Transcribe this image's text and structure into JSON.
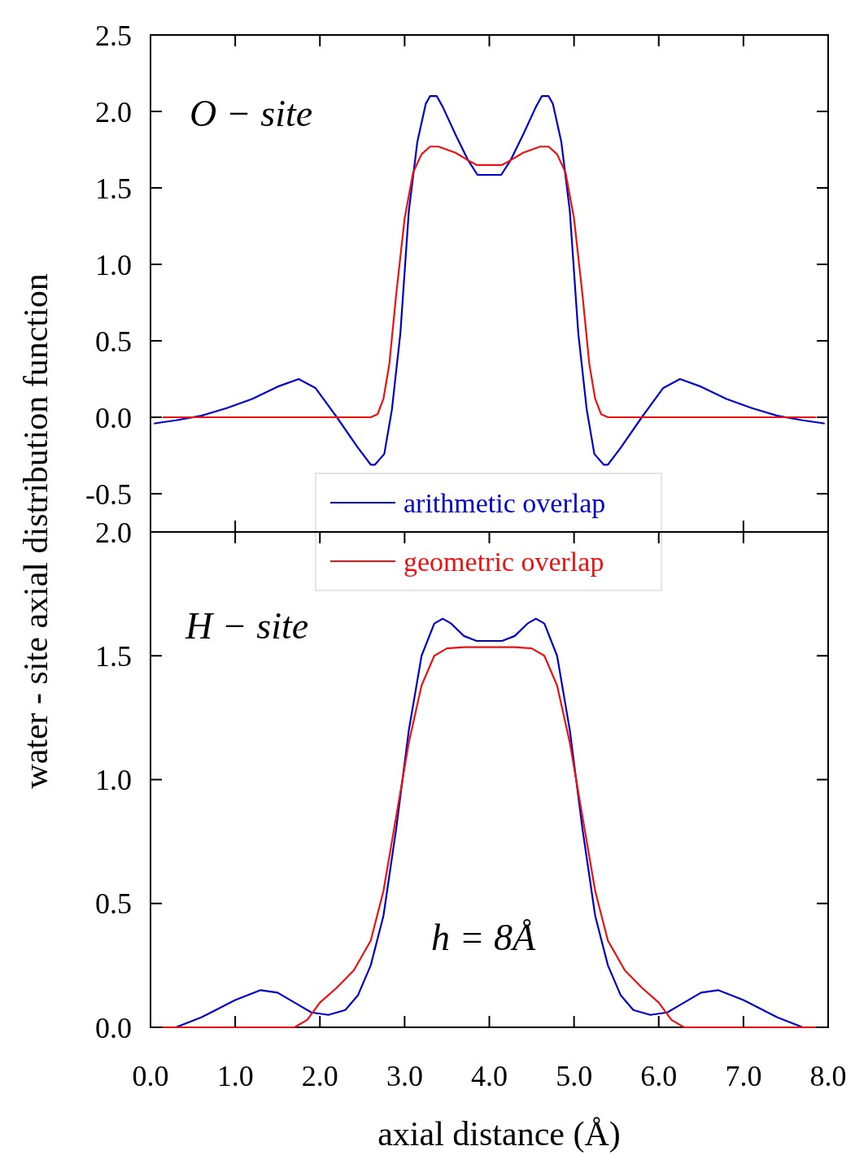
{
  "chart_data": [
    {
      "type": "line",
      "ylabel": "water - site axial distribution function",
      "annotations": [
        "O − site"
      ],
      "xlim": [
        0,
        8
      ],
      "xticks": [
        0,
        1,
        2,
        3,
        4,
        5,
        6,
        7,
        8
      ],
      "ylim": [
        -0.75,
        2.5
      ],
      "yticks": [
        {
          "value": -0.5,
          "label": "-0.5"
        },
        {
          "value": 0,
          "label": "0.0"
        },
        {
          "value": 0.5,
          "label": "0.5"
        },
        {
          "value": 1,
          "label": "1.0"
        },
        {
          "value": 1.5,
          "label": "1.5"
        },
        {
          "value": 2,
          "label": "2.0"
        },
        {
          "value": 2.5,
          "label": "2.5"
        }
      ],
      "tick_labels": "y",
      "grid": false,
      "legend": "bottom",
      "marker": "none",
      "line_style": "solid",
      "series": [
        {
          "name": "arithmetic overlap",
          "color": "#0000cc",
          "x": [
            0.05,
            0.3,
            0.6,
            0.9,
            1.2,
            1.5,
            1.75,
            1.95,
            2.2,
            2.45,
            2.6,
            2.65,
            2.76,
            2.85,
            2.95,
            3.05,
            3.15,
            3.25,
            3.3,
            3.38,
            3.45,
            3.6,
            3.75,
            3.86,
            4.0,
            4.14,
            4.25,
            4.4,
            4.55,
            4.62,
            4.7,
            4.75,
            4.85,
            4.95,
            5.05,
            5.15,
            5.24,
            5.35,
            5.4,
            5.55,
            5.8,
            6.05,
            6.25,
            6.5,
            6.8,
            7.1,
            7.4,
            7.7,
            7.95
          ],
          "values": [
            -0.04,
            -0.02,
            0.01,
            0.06,
            0.12,
            0.2,
            0.25,
            0.19,
            0.0,
            -0.2,
            -0.31,
            -0.31,
            -0.24,
            0.05,
            0.55,
            1.35,
            1.8,
            2.05,
            2.1,
            2.1,
            2.03,
            1.85,
            1.68,
            1.585,
            1.585,
            1.585,
            1.68,
            1.85,
            2.03,
            2.1,
            2.1,
            2.05,
            1.8,
            1.35,
            0.55,
            0.05,
            -0.24,
            -0.31,
            -0.31,
            -0.2,
            0.0,
            0.19,
            0.25,
            0.2,
            0.12,
            0.06,
            0.01,
            -0.02,
            -0.04
          ]
        },
        {
          "name": "geometric overlap",
          "color": "#ee1111",
          "x": [
            0.15,
            2.6,
            2.68,
            2.75,
            2.82,
            2.9,
            3.0,
            3.1,
            3.2,
            3.3,
            3.4,
            3.6,
            3.75,
            3.85,
            4.0,
            4.15,
            4.25,
            4.4,
            4.6,
            4.7,
            4.8,
            4.9,
            5.0,
            5.1,
            5.18,
            5.25,
            5.32,
            5.4,
            7.85
          ],
          "values": [
            0,
            0,
            0.02,
            0.12,
            0.35,
            0.8,
            1.3,
            1.6,
            1.72,
            1.77,
            1.77,
            1.73,
            1.68,
            1.65,
            1.65,
            1.65,
            1.68,
            1.73,
            1.77,
            1.77,
            1.72,
            1.6,
            1.3,
            0.8,
            0.35,
            0.12,
            0.02,
            0,
            0
          ]
        }
      ]
    },
    {
      "type": "line",
      "xlabel": "axial distance (Å)",
      "annotations": [
        "H − site",
        "h = 8Å"
      ],
      "xlim": [
        0,
        8
      ],
      "xticks": [
        {
          "value": 0,
          "label": "0.0"
        },
        {
          "value": 1,
          "label": "1.0"
        },
        {
          "value": 2,
          "label": "2.0"
        },
        {
          "value": 3,
          "label": "3.0"
        },
        {
          "value": 4,
          "label": "4.0"
        },
        {
          "value": 5,
          "label": "5.0"
        },
        {
          "value": 6,
          "label": "6.0"
        },
        {
          "value": 7,
          "label": "7.0"
        },
        {
          "value": 8,
          "label": "8.0"
        }
      ],
      "ylim": [
        0,
        2
      ],
      "yticks": [
        {
          "value": 0,
          "label": "0.0"
        },
        {
          "value": 0.5,
          "label": "0.5"
        },
        {
          "value": 1,
          "label": "1.0"
        },
        {
          "value": 1.5,
          "label": "1.5"
        },
        {
          "value": 2,
          "label": "2.0"
        }
      ],
      "grid": false,
      "marker": "none",
      "line_style": "solid",
      "series": [
        {
          "color": "#0000cc",
          "x": [
            0.3,
            0.6,
            1.0,
            1.3,
            1.5,
            1.75,
            1.9,
            2.1,
            2.3,
            2.45,
            2.6,
            2.75,
            2.9,
            3.05,
            3.2,
            3.35,
            3.45,
            3.55,
            3.7,
            3.85,
            4.0,
            4.15,
            4.3,
            4.45,
            4.55,
            4.65,
            4.8,
            4.95,
            5.1,
            5.25,
            5.4,
            5.55,
            5.7,
            5.9,
            6.1,
            6.25,
            6.5,
            6.7,
            7.0,
            7.4,
            7.7
          ],
          "values": [
            0,
            0.04,
            0.11,
            0.15,
            0.14,
            0.09,
            0.06,
            0.05,
            0.07,
            0.13,
            0.25,
            0.45,
            0.8,
            1.2,
            1.5,
            1.63,
            1.65,
            1.63,
            1.58,
            1.56,
            1.56,
            1.56,
            1.58,
            1.63,
            1.65,
            1.63,
            1.5,
            1.2,
            0.8,
            0.45,
            0.25,
            0.13,
            0.07,
            0.05,
            0.06,
            0.09,
            0.14,
            0.15,
            0.11,
            0.04,
            0
          ]
        },
        {
          "color": "#ee1111",
          "x": [
            0.15,
            1.7,
            1.85,
            2.0,
            2.2,
            2.4,
            2.6,
            2.75,
            2.9,
            3.05,
            3.2,
            3.35,
            3.5,
            3.7,
            4.0,
            4.3,
            4.5,
            4.65,
            4.8,
            4.95,
            5.1,
            5.25,
            5.4,
            5.6,
            5.8,
            6.0,
            6.15,
            6.3,
            7.85
          ],
          "values": [
            0,
            0,
            0.03,
            0.1,
            0.16,
            0.23,
            0.35,
            0.55,
            0.85,
            1.15,
            1.38,
            1.5,
            1.53,
            1.535,
            1.535,
            1.535,
            1.53,
            1.5,
            1.38,
            1.15,
            0.85,
            0.55,
            0.35,
            0.23,
            0.16,
            0.1,
            0.03,
            0,
            0
          ]
        }
      ]
    }
  ]
}
